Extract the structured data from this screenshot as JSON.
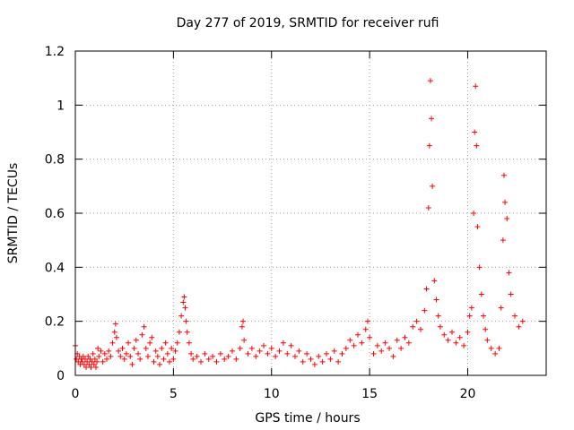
{
  "chart_data": {
    "type": "scatter",
    "title": "Day 277 of 2019, SRMTID for receiver rufi",
    "xlabel": "GPS time / hours",
    "ylabel": "SRMTID / TECUs",
    "xlim": [
      0,
      24
    ],
    "ylim": [
      0,
      1.2
    ],
    "xticks": [
      0,
      5,
      10,
      15,
      20
    ],
    "xtick_labels": [
      "0",
      "5",
      "10",
      "15",
      "20"
    ],
    "yticks": [
      0,
      0.2,
      0.4,
      0.6,
      0.8,
      1.0,
      1.2
    ],
    "ytick_labels": [
      "0",
      "0.2",
      "0.4",
      "0.6",
      "0.8",
      "1",
      "1.2"
    ],
    "grid": true,
    "marker": "+",
    "color": "#ff0000",
    "series": [
      {
        "name": "SRMTID",
        "points": [
          [
            0.0,
            0.11
          ],
          [
            0.05,
            0.06
          ],
          [
            0.1,
            0.08
          ],
          [
            0.15,
            0.05
          ],
          [
            0.2,
            0.07
          ],
          [
            0.25,
            0.04
          ],
          [
            0.3,
            0.06
          ],
          [
            0.35,
            0.05
          ],
          [
            0.4,
            0.07
          ],
          [
            0.45,
            0.04
          ],
          [
            0.5,
            0.06
          ],
          [
            0.55,
            0.03
          ],
          [
            0.6,
            0.05
          ],
          [
            0.65,
            0.07
          ],
          [
            0.7,
            0.04
          ],
          [
            0.75,
            0.06
          ],
          [
            0.8,
            0.03
          ],
          [
            0.85,
            0.05
          ],
          [
            0.9,
            0.08
          ],
          [
            0.95,
            0.04
          ],
          [
            1.0,
            0.06
          ],
          [
            1.05,
            0.03
          ],
          [
            1.1,
            0.05
          ],
          [
            1.15,
            0.1
          ],
          [
            1.2,
            0.07
          ],
          [
            1.3,
            0.09
          ],
          [
            1.4,
            0.05
          ],
          [
            1.5,
            0.08
          ],
          [
            1.6,
            0.06
          ],
          [
            1.7,
            0.09
          ],
          [
            1.8,
            0.07
          ],
          [
            1.9,
            0.12
          ],
          [
            2.0,
            0.16
          ],
          [
            2.05,
            0.19
          ],
          [
            2.1,
            0.14
          ],
          [
            2.2,
            0.09
          ],
          [
            2.3,
            0.07
          ],
          [
            2.4,
            0.1
          ],
          [
            2.5,
            0.06
          ],
          [
            2.6,
            0.08
          ],
          [
            2.7,
            0.12
          ],
          [
            2.8,
            0.07
          ],
          [
            2.9,
            0.04
          ],
          [
            3.0,
            0.1
          ],
          [
            3.1,
            0.13
          ],
          [
            3.2,
            0.08
          ],
          [
            3.3,
            0.06
          ],
          [
            3.4,
            0.15
          ],
          [
            3.5,
            0.18
          ],
          [
            3.6,
            0.1
          ],
          [
            3.7,
            0.07
          ],
          [
            3.8,
            0.12
          ],
          [
            3.9,
            0.14
          ],
          [
            4.0,
            0.05
          ],
          [
            4.1,
            0.09
          ],
          [
            4.2,
            0.07
          ],
          [
            4.3,
            0.04
          ],
          [
            4.4,
            0.1
          ],
          [
            4.5,
            0.06
          ],
          [
            4.6,
            0.12
          ],
          [
            4.7,
            0.08
          ],
          [
            4.8,
            0.05
          ],
          [
            4.9,
            0.1
          ],
          [
            5.0,
            0.06
          ],
          [
            5.1,
            0.09
          ],
          [
            5.2,
            0.12
          ],
          [
            5.3,
            0.16
          ],
          [
            5.4,
            0.22
          ],
          [
            5.5,
            0.27
          ],
          [
            5.55,
            0.29
          ],
          [
            5.6,
            0.25
          ],
          [
            5.65,
            0.2
          ],
          [
            5.7,
            0.16
          ],
          [
            5.8,
            0.12
          ],
          [
            5.9,
            0.08
          ],
          [
            6.0,
            0.06
          ],
          [
            6.2,
            0.07
          ],
          [
            6.4,
            0.05
          ],
          [
            6.6,
            0.08
          ],
          [
            6.8,
            0.06
          ],
          [
            7.0,
            0.07
          ],
          [
            7.2,
            0.05
          ],
          [
            7.4,
            0.08
          ],
          [
            7.6,
            0.06
          ],
          [
            7.8,
            0.07
          ],
          [
            8.0,
            0.09
          ],
          [
            8.2,
            0.06
          ],
          [
            8.4,
            0.1
          ],
          [
            8.5,
            0.18
          ],
          [
            8.55,
            0.2
          ],
          [
            8.6,
            0.13
          ],
          [
            8.8,
            0.08
          ],
          [
            9.0,
            0.1
          ],
          [
            9.2,
            0.07
          ],
          [
            9.4,
            0.09
          ],
          [
            9.6,
            0.11
          ],
          [
            9.8,
            0.08
          ],
          [
            10.0,
            0.1
          ],
          [
            10.2,
            0.07
          ],
          [
            10.4,
            0.09
          ],
          [
            10.6,
            0.12
          ],
          [
            10.8,
            0.08
          ],
          [
            11.0,
            0.11
          ],
          [
            11.2,
            0.07
          ],
          [
            11.4,
            0.09
          ],
          [
            11.6,
            0.05
          ],
          [
            11.8,
            0.08
          ],
          [
            12.0,
            0.06
          ],
          [
            12.2,
            0.04
          ],
          [
            12.4,
            0.07
          ],
          [
            12.6,
            0.05
          ],
          [
            12.8,
            0.08
          ],
          [
            13.0,
            0.06
          ],
          [
            13.2,
            0.09
          ],
          [
            13.4,
            0.05
          ],
          [
            13.6,
            0.08
          ],
          [
            13.8,
            0.1
          ],
          [
            14.0,
            0.13
          ],
          [
            14.2,
            0.11
          ],
          [
            14.4,
            0.15
          ],
          [
            14.6,
            0.12
          ],
          [
            14.8,
            0.17
          ],
          [
            14.9,
            0.2
          ],
          [
            15.0,
            0.14
          ],
          [
            15.2,
            0.08
          ],
          [
            15.4,
            0.11
          ],
          [
            15.6,
            0.09
          ],
          [
            15.8,
            0.12
          ],
          [
            16.0,
            0.1
          ],
          [
            16.2,
            0.07
          ],
          [
            16.4,
            0.13
          ],
          [
            16.6,
            0.1
          ],
          [
            16.8,
            0.14
          ],
          [
            17.0,
            0.12
          ],
          [
            17.2,
            0.18
          ],
          [
            17.4,
            0.2
          ],
          [
            17.6,
            0.17
          ],
          [
            17.8,
            0.24
          ],
          [
            17.9,
            0.32
          ],
          [
            18.0,
            0.62
          ],
          [
            18.05,
            0.85
          ],
          [
            18.1,
            1.09
          ],
          [
            18.15,
            0.95
          ],
          [
            18.2,
            0.7
          ],
          [
            18.3,
            0.35
          ],
          [
            18.4,
            0.28
          ],
          [
            18.5,
            0.22
          ],
          [
            18.6,
            0.18
          ],
          [
            18.8,
            0.15
          ],
          [
            19.0,
            0.13
          ],
          [
            19.2,
            0.16
          ],
          [
            19.4,
            0.12
          ],
          [
            19.6,
            0.14
          ],
          [
            19.8,
            0.11
          ],
          [
            20.0,
            0.16
          ],
          [
            20.1,
            0.22
          ],
          [
            20.2,
            0.25
          ],
          [
            20.3,
            0.6
          ],
          [
            20.35,
            0.9
          ],
          [
            20.4,
            1.07
          ],
          [
            20.45,
            0.85
          ],
          [
            20.5,
            0.55
          ],
          [
            20.6,
            0.4
          ],
          [
            20.7,
            0.3
          ],
          [
            20.8,
            0.22
          ],
          [
            20.9,
            0.17
          ],
          [
            21.0,
            0.13
          ],
          [
            21.2,
            0.1
          ],
          [
            21.4,
            0.08
          ],
          [
            21.6,
            0.1
          ],
          [
            21.7,
            0.25
          ],
          [
            21.8,
            0.5
          ],
          [
            21.85,
            0.74
          ],
          [
            21.9,
            0.64
          ],
          [
            22.0,
            0.58
          ],
          [
            22.1,
            0.38
          ],
          [
            22.2,
            0.3
          ],
          [
            22.4,
            0.22
          ],
          [
            22.6,
            0.18
          ],
          [
            22.8,
            0.2
          ]
        ]
      }
    ]
  }
}
